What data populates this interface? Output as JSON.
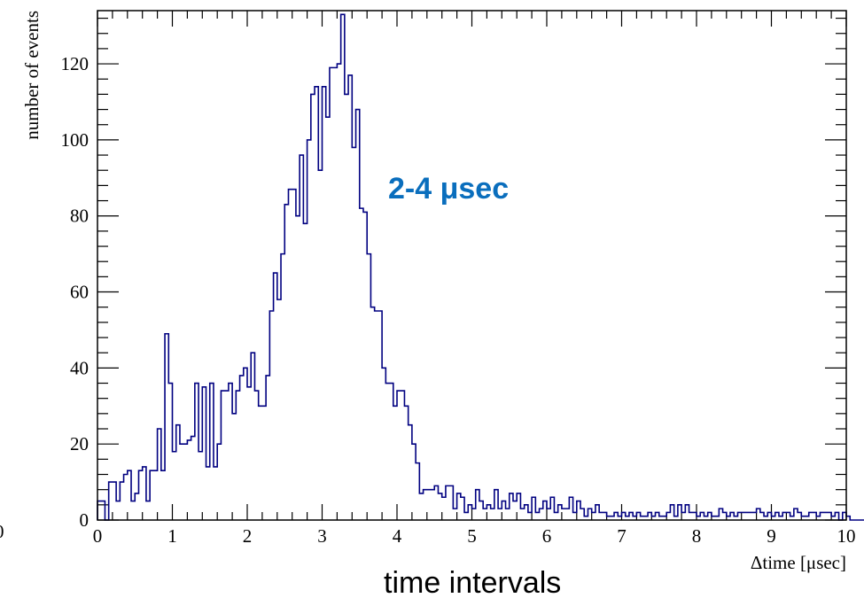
{
  "chart_data": {
    "type": "histogram",
    "xlabel": "Δtime [μsec]",
    "ylabel": "number of events",
    "xlim": [
      0,
      10
    ],
    "ylim": [
      0,
      134
    ],
    "x_ticks": [
      0,
      1,
      2,
      3,
      4,
      5,
      6,
      7,
      8,
      9,
      10
    ],
    "y_ticks": [
      0,
      20,
      40,
      60,
      80,
      100,
      120
    ],
    "bin_width": 0.05,
    "bin_start": 0,
    "counts": [
      5,
      5,
      0,
      10,
      10,
      5,
      10,
      12,
      13,
      5,
      7,
      13,
      14,
      5,
      13,
      13,
      24,
      13,
      49,
      36,
      18,
      25,
      20,
      20,
      21,
      22,
      36,
      18,
      35,
      14,
      36,
      14,
      20,
      34,
      34,
      36,
      28,
      34,
      38,
      40,
      35,
      44,
      34,
      30,
      30,
      38,
      55,
      65,
      58,
      70,
      83,
      87,
      87,
      80,
      96,
      78,
      100,
      112,
      114,
      92,
      114,
      106,
      119,
      119,
      120,
      133,
      112,
      117,
      98,
      108,
      82,
      81,
      70,
      56,
      55,
      55,
      40,
      36,
      36,
      30,
      34,
      34,
      30,
      25,
      20,
      15,
      7,
      8,
      8,
      8,
      9,
      7,
      6,
      9,
      9,
      3,
      7,
      6,
      2,
      4,
      3,
      8,
      5,
      3,
      4,
      3,
      8,
      3,
      5,
      3,
      7,
      5,
      7,
      3,
      4,
      2,
      6,
      2,
      3,
      5,
      3,
      6,
      2,
      4,
      3,
      3,
      6,
      2,
      5,
      3,
      1,
      3,
      2,
      4,
      2,
      2,
      1,
      1,
      2,
      1,
      2,
      1,
      2,
      1,
      2,
      1,
      1,
      2,
      1,
      2,
      1,
      1,
      2,
      4,
      1,
      4,
      2,
      4,
      2,
      2,
      1,
      2,
      1,
      2,
      1,
      1,
      3,
      2,
      1,
      2,
      1,
      2,
      2,
      2,
      2,
      2,
      3,
      2,
      1,
      2,
      1,
      2,
      1,
      2,
      2,
      1,
      3,
      2,
      1,
      1,
      2,
      2,
      1,
      2,
      2,
      2,
      1,
      2,
      0,
      2,
      1,
      0,
      0,
      0,
      0,
      0
    ],
    "color": "#000080",
    "grid": false
  },
  "annotation": {
    "text": "2-4 μsec",
    "color": "#0a6ebd"
  },
  "caption": {
    "text": "time intervals"
  },
  "stray_label": "0"
}
